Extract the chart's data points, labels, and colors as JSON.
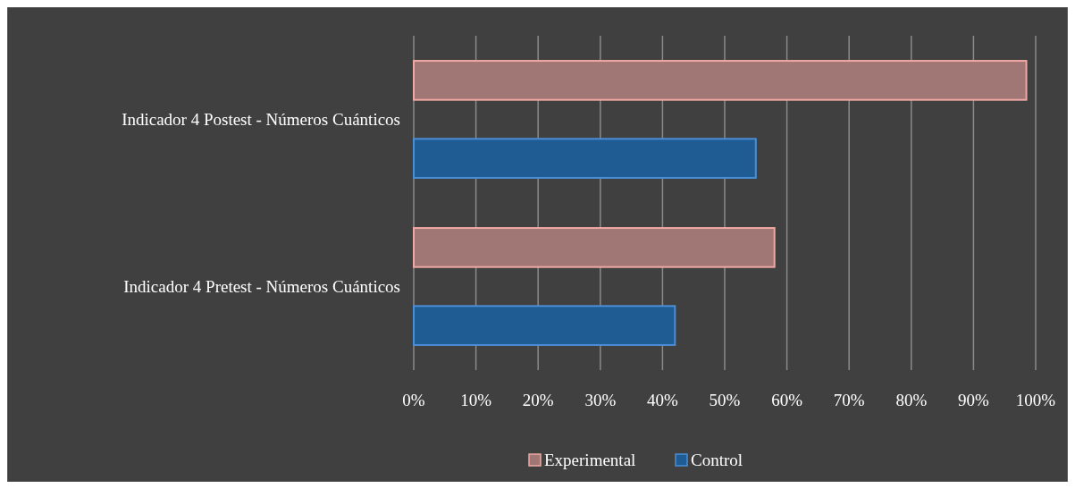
{
  "chart_data": {
    "type": "bar",
    "orientation": "horizontal",
    "categories": [
      "Indicador 4 Postest - Números Cuánticos",
      "Indicador 4 Pretest - Números Cuánticos"
    ],
    "series": [
      {
        "name": "Experimental",
        "color": "#a07774",
        "values": [
          98.5,
          58
        ]
      },
      {
        "name": "Control",
        "color": "#1f5c93",
        "values": [
          55,
          42
        ]
      }
    ],
    "xlim": [
      0,
      100
    ],
    "xticks": [
      {
        "value": 0,
        "label": "0%"
      },
      {
        "value": 10,
        "label": "10%"
      },
      {
        "value": 20,
        "label": "20%"
      },
      {
        "value": 30,
        "label": "30%"
      },
      {
        "value": 40,
        "label": "40%"
      },
      {
        "value": 50,
        "label": "50%"
      },
      {
        "value": 60,
        "label": "60%"
      },
      {
        "value": 70,
        "label": "70%"
      },
      {
        "value": 80,
        "label": "80%"
      },
      {
        "value": 90,
        "label": "90%"
      },
      {
        "value": 100,
        "label": "100%"
      }
    ],
    "grid": "x",
    "legend": "bottom"
  }
}
